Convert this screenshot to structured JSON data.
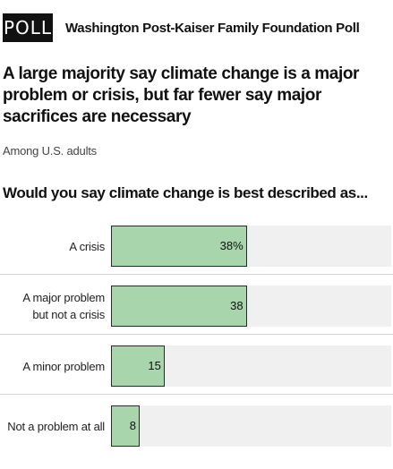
{
  "header": {
    "badge": "POLL",
    "source": "Washington Post-Kaiser Family Foundation Poll"
  },
  "title": "A large majority say climate change is a major problem or crisis, but far fewer say major sacrifices are necessary",
  "subtitle": "Among U.S. adults",
  "question": "Would you say climate change is best described as...",
  "colors": {
    "bar_fill": "#a8d5ac",
    "bar_track": "#f0f0f0",
    "badge_bg": "#111111"
  },
  "chart_data": {
    "type": "bar",
    "orientation": "horizontal",
    "title": "Would you say climate change is best described as...",
    "categories": [
      "A crisis",
      "A major problem\nbut not a crisis",
      "A minor problem",
      "Not a problem at all"
    ],
    "values": [
      38,
      38,
      15,
      8
    ],
    "value_labels": [
      "38%",
      "38",
      "15",
      "8"
    ],
    "unit": "%",
    "xlim": [
      0,
      100
    ],
    "grid": false,
    "legend": "none"
  }
}
